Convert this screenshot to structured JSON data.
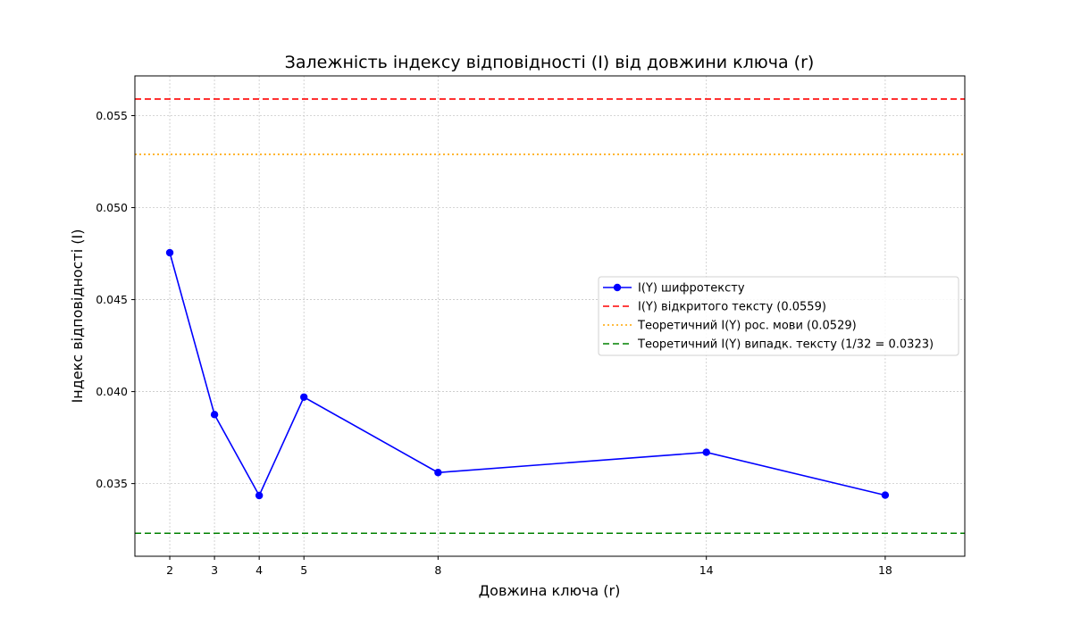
{
  "chart_data": {
    "type": "line",
    "title": "Залежність індексу відповідності (I) від довжини ключа (r)",
    "xlabel": "Довжина ключа (r)",
    "ylabel": "Індекс відповідності (I)",
    "x": [
      2,
      3,
      4,
      5,
      8,
      14,
      18
    ],
    "xticks": [
      2,
      3,
      4,
      5,
      8,
      14,
      18
    ],
    "xlim": [
      1.22,
      19.78
    ],
    "ylim": [
      0.03105,
      0.05716
    ],
    "yticks": [
      0.035,
      0.04,
      0.045,
      0.05,
      0.055
    ],
    "ytick_labels": [
      "0.035",
      "0.040",
      "0.045",
      "0.050",
      "0.055"
    ],
    "grid": true,
    "legend_position": "center-right",
    "series": [
      {
        "name": "I(Y) шифротексту",
        "kind": "line-marker",
        "color": "#0000ff",
        "values": [
          0.04755,
          0.03875,
          0.03435,
          0.0397,
          0.0356,
          0.0367,
          0.03437
        ]
      }
    ],
    "reference_lines": [
      {
        "name": "I(Y) відкритого тексту (0.0559)",
        "y": 0.0559,
        "color": "#ff0000",
        "style": "dashed"
      },
      {
        "name": "Теоретичний I(Y) рос. мови (0.0529)",
        "y": 0.0529,
        "color": "#ffa500",
        "style": "dotted"
      },
      {
        "name": "Теоретичний I(Y) випадк. тексту (1/32 = 0.0323)",
        "y": 0.0323,
        "color": "#008000",
        "style": "dashed"
      }
    ]
  }
}
